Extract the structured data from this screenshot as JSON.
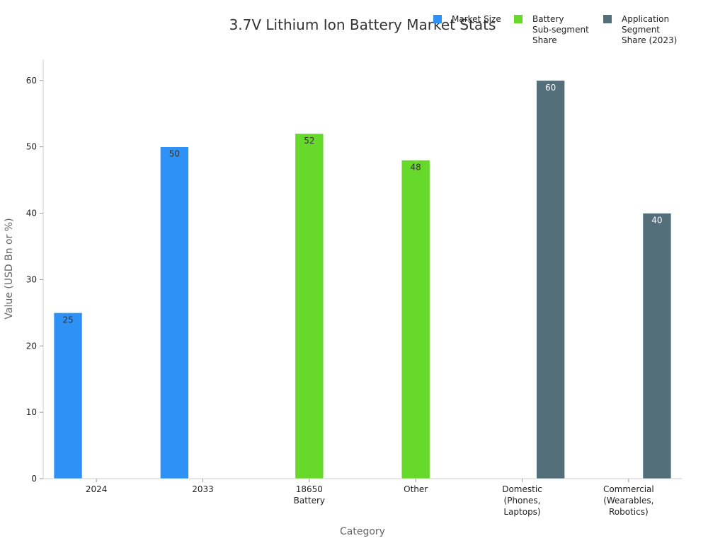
{
  "chart_data": {
    "type": "bar",
    "title": "3.7V Lithium Ion Battery Market Stats",
    "xlabel": "Category",
    "ylabel": "Value (USD Bn or %)",
    "ylim": [
      0,
      63
    ],
    "yticks": [
      0,
      10,
      20,
      30,
      40,
      50,
      60
    ],
    "grid": false,
    "legend_position": "top-right",
    "categories": [
      [
        "2024"
      ],
      [
        "2033"
      ],
      [
        "18650",
        "Battery"
      ],
      [
        "Other"
      ],
      [
        "Domestic",
        "(Phones,",
        "Laptops)"
      ],
      [
        "Commercial",
        "(Wearables,",
        "Robotics)"
      ]
    ],
    "series": [
      {
        "name": [
          "Market Size"
        ],
        "color": "#2e91f5",
        "label_color": "#333333",
        "values": [
          25,
          50,
          null,
          null,
          null,
          null
        ]
      },
      {
        "name": [
          "Battery",
          "Sub-segment",
          "Share"
        ],
        "color": "#66d92a",
        "label_color": "#333333",
        "values": [
          null,
          null,
          52,
          48,
          null,
          null
        ]
      },
      {
        "name": [
          "Application",
          "Segment",
          "Share (2023)"
        ],
        "color": "#546e7a",
        "label_color": "#ffffff",
        "values": [
          null,
          null,
          null,
          null,
          60,
          40
        ]
      }
    ]
  }
}
